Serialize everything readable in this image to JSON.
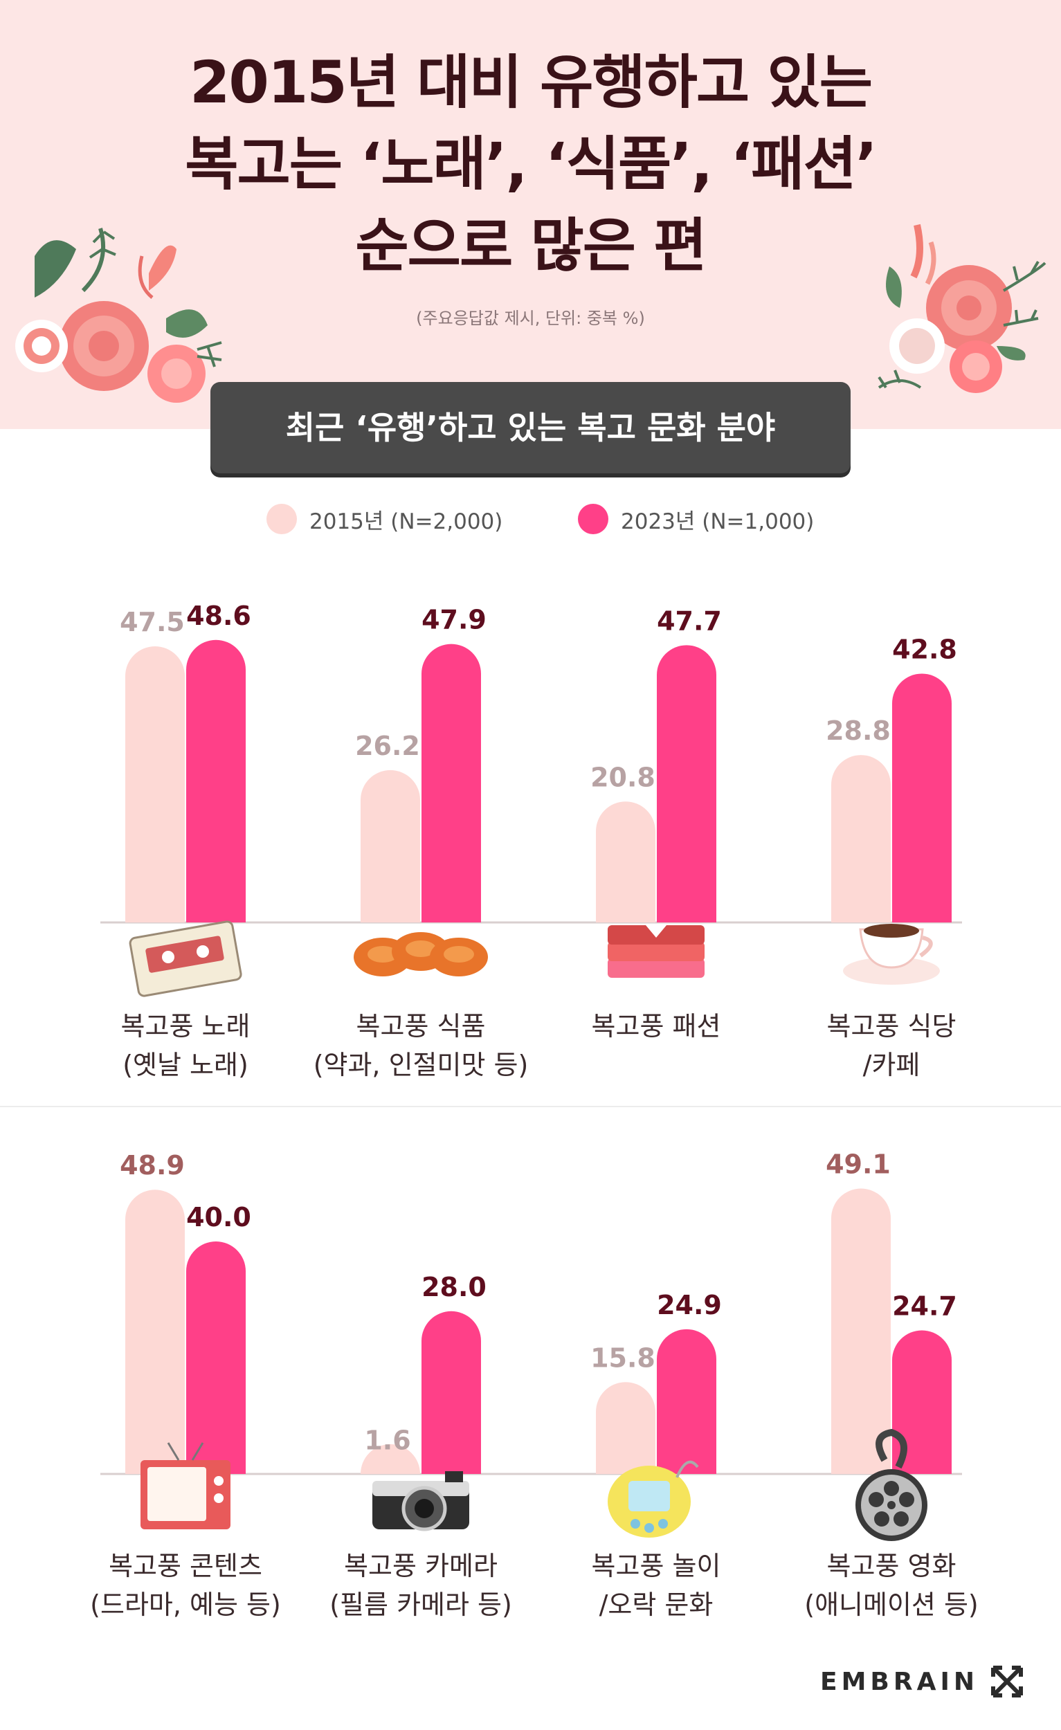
{
  "header": {
    "title_lines": [
      "2015년 대비 유행하고 있는",
      "복고는 ‘노래’, ‘식품’, ‘패션’",
      "순으로 많은 편"
    ],
    "note": "(주요응답값 제시, 단위: 중복 %)",
    "banner": "최근 ‘유행’하고 있는 복고 문화 분야"
  },
  "legend": [
    {
      "label": "2015년 (N=2,000)",
      "color": "#fdd9d5"
    },
    {
      "label": "2023년 (N=1,000)",
      "color": "#ff4088"
    }
  ],
  "colors": {
    "bar_2015": "#fdd9d5",
    "bar_2023": "#ff4088",
    "label_2015": "#b7a2a3",
    "label_2015_emph": "#a15e5e",
    "label_2023": "#5e0d1e",
    "baseline": "#d9cfcf"
  },
  "chart_data": [
    {
      "type": "bar",
      "categories": [
        "복고풍 노래\n(옛날 노래)",
        "복고풍 식품\n(약과, 인절미맛 등)",
        "복고풍 패션",
        "복고풍 식당\n/카페"
      ],
      "series": [
        {
          "name": "2015년 (N=2,000)",
          "values": [
            47.5,
            26.2,
            20.8,
            28.8
          ]
        },
        {
          "name": "2023년 (N=1,000)",
          "values": [
            48.6,
            47.9,
            47.7,
            42.8
          ]
        }
      ],
      "value_labels_2015": [
        "47.5",
        "26.2",
        "20.8",
        "28.8"
      ],
      "value_labels_2023": [
        "48.6",
        "47.9",
        "47.7",
        "42.8"
      ],
      "icons": [
        "cassette-tape-icon",
        "yakgwa-cookie-icon",
        "folded-clothes-icon",
        "coffee-cup-icon"
      ],
      "ylim": [
        0,
        50
      ]
    },
    {
      "type": "bar",
      "categories": [
        "복고풍 콘텐츠\n(드라마, 예능 등)",
        "복고풍 카메라\n(필름 카메라 등)",
        "복고풍 놀이\n/오락 문화",
        "복고풍 영화\n(애니메이션 등)"
      ],
      "series": [
        {
          "name": "2015년 (N=2,000)",
          "values": [
            48.9,
            1.6,
            15.8,
            49.1
          ]
        },
        {
          "name": "2023년 (N=1,000)",
          "values": [
            40.0,
            28.0,
            24.9,
            24.7
          ]
        }
      ],
      "value_labels_2015": [
        "48.9",
        "1.6",
        "15.8",
        "49.1"
      ],
      "value_labels_2023": [
        "40.0",
        "28.0",
        "24.9",
        "24.7"
      ],
      "icons": [
        "retro-tv-icon",
        "film-camera-icon",
        "tamagotchi-icon",
        "film-reel-icon"
      ],
      "ylim": [
        0,
        50
      ]
    }
  ],
  "brand": {
    "name": "EMBRAIN"
  }
}
